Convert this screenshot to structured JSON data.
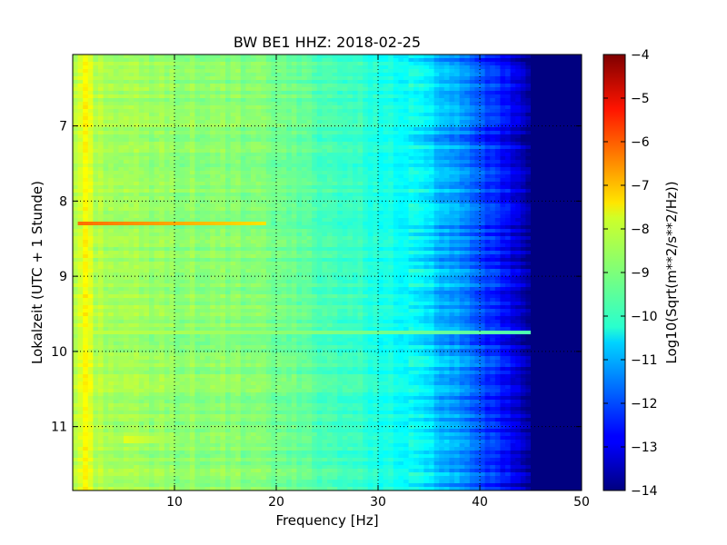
{
  "chart_data": {
    "type": "heatmap",
    "title": "BW BE1 HHZ: 2018-02-25",
    "xlabel": "Frequency [Hz]",
    "ylabel": "Lokalzeit (UTC + 1 Stunde)",
    "xlim": [
      0,
      50
    ],
    "ylim": [
      11.85,
      6.05
    ],
    "x_ticks": [
      10,
      20,
      30,
      40,
      50
    ],
    "y_ticks": [
      7,
      8,
      9,
      10,
      11
    ],
    "grid": true,
    "colormap": "jet",
    "colorbar": {
      "label": "Log10(Sqrt(m**2/s**2/Hz))",
      "range": [
        -14,
        -4
      ],
      "ticks": [
        -4,
        -5,
        -6,
        -7,
        -8,
        -9,
        -10,
        -11,
        -12,
        -13,
        -14
      ]
    },
    "profile_by_frequency": [
      {
        "hz": 0.0,
        "value": -8.6
      },
      {
        "hz": 0.8,
        "value": -8.1
      },
      {
        "hz": 1.2,
        "value": -7.6
      },
      {
        "hz": 2.0,
        "value": -8.4
      },
      {
        "hz": 5.0,
        "value": -8.7
      },
      {
        "hz": 10.0,
        "value": -8.8
      },
      {
        "hz": 15.0,
        "value": -8.9
      },
      {
        "hz": 20.0,
        "value": -9.1
      },
      {
        "hz": 25.0,
        "value": -9.5
      },
      {
        "hz": 30.0,
        "value": -9.9
      },
      {
        "hz": 34.0,
        "value": -10.4
      },
      {
        "hz": 37.0,
        "value": -11.1
      },
      {
        "hz": 40.0,
        "value": -12.0
      },
      {
        "hz": 42.0,
        "value": -12.6
      },
      {
        "hz": 44.0,
        "value": -13.3
      },
      {
        "hz": 45.0,
        "value": -14.0
      },
      {
        "hz": 50.0,
        "value": -14.0
      }
    ],
    "events": [
      {
        "time": 8.3,
        "hz_from": 0.5,
        "hz_to": 19.0,
        "value": -6.3
      },
      {
        "time": 11.17,
        "hz_from": 5.0,
        "hz_to": 13.0,
        "value": -8.0
      },
      {
        "time": 9.75,
        "hz_from": 0.5,
        "hz_to": 45.0,
        "value": -8.3
      }
    ]
  }
}
